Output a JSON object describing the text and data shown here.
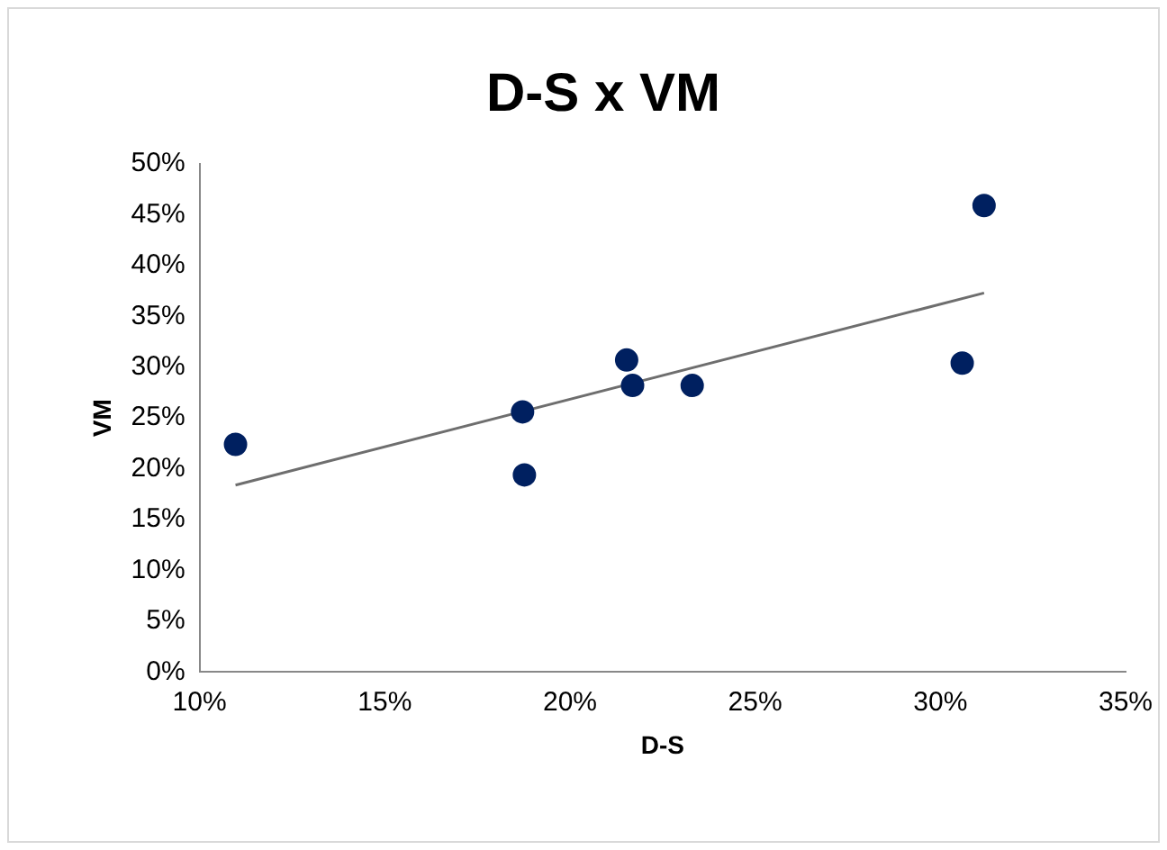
{
  "chart_data": {
    "type": "scatter",
    "title": "D-S x VM",
    "xlabel": "D-S",
    "ylabel": "VM",
    "x": [
      10.97,
      18.72,
      18.77,
      21.53,
      21.69,
      23.3,
      30.59,
      31.18
    ],
    "series": [
      {
        "marker": "circle",
        "color": "#002060",
        "values": [
          22.4,
          25.6,
          19.4,
          30.7,
          28.2,
          28.2,
          30.4,
          45.9
        ]
      },
      {
        "type": "line",
        "marker": "none",
        "color": "#6e6e6e",
        "x": [
          10.97,
          31.18
        ],
        "values": [
          18.4,
          37.3
        ]
      }
    ],
    "grid": false,
    "legend": false,
    "xlim": [
      10,
      35
    ],
    "xticks": [
      {
        "value": 10,
        "label": "10%"
      },
      {
        "value": 15,
        "label": "15%"
      },
      {
        "value": 20,
        "label": "20%"
      },
      {
        "value": 25,
        "label": "25%"
      },
      {
        "value": 30,
        "label": "30%"
      },
      {
        "value": 35,
        "label": "35%"
      }
    ],
    "ylim": [
      0,
      50
    ],
    "yticks": [
      {
        "value": 0,
        "label": "0%"
      },
      {
        "value": 5,
        "label": "5%"
      },
      {
        "value": 10,
        "label": "10%"
      },
      {
        "value": 15,
        "label": "15%"
      },
      {
        "value": 20,
        "label": "20%"
      },
      {
        "value": 25,
        "label": "25%"
      },
      {
        "value": 30,
        "label": "30%"
      },
      {
        "value": 35,
        "label": "35%"
      },
      {
        "value": 40,
        "label": "40%"
      },
      {
        "value": 45,
        "label": "45%"
      },
      {
        "value": 50,
        "label": "50%"
      }
    ]
  }
}
